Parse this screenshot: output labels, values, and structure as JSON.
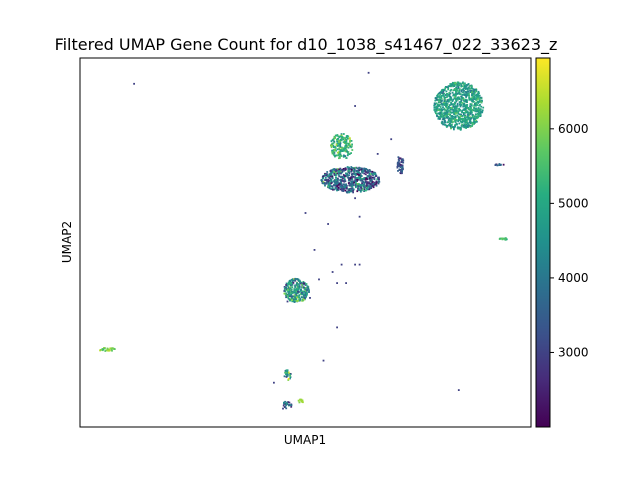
{
  "chart_data": {
    "type": "scatter",
    "title": "Filtered UMAP Gene Count for d10_1038_s41467_022_33623_z",
    "xlabel": "UMAP1",
    "ylabel": "UMAP2",
    "xticks_shown": false,
    "yticks_shown": false,
    "grid": false,
    "color_encoding": "gene count",
    "colormap": "viridis",
    "colorbar": {
      "min": 2000,
      "max": 6950,
      "ticks": [
        3000,
        4000,
        5000,
        6000
      ],
      "tick_labels": [
        "3000",
        "4000",
        "5000",
        "6000"
      ]
    },
    "clusters": [
      {
        "name": "top-right large",
        "cx": 0.84,
        "cy": 0.87,
        "rx": 0.055,
        "ry": 0.065,
        "n": 900,
        "mean_count": 4800,
        "sd": 450
      },
      {
        "name": "upper-middle diagonal",
        "cx": 0.6,
        "cy": 0.67,
        "rx": 0.065,
        "ry": 0.035,
        "n": 650,
        "mean_count": 3600,
        "sd": 900
      },
      {
        "name": "upper-middle left blob",
        "cx": 0.58,
        "cy": 0.76,
        "rx": 0.025,
        "ry": 0.035,
        "n": 180,
        "mean_count": 5300,
        "sd": 600
      },
      {
        "name": "small right of middle",
        "cx": 0.71,
        "cy": 0.71,
        "rx": 0.008,
        "ry": 0.025,
        "n": 60,
        "mean_count": 3300,
        "sd": 400
      },
      {
        "name": "central",
        "cx": 0.48,
        "cy": 0.37,
        "rx": 0.028,
        "ry": 0.032,
        "n": 280,
        "mean_count": 4700,
        "sd": 900
      },
      {
        "name": "far-left small",
        "cx": 0.06,
        "cy": 0.21,
        "rx": 0.018,
        "ry": 0.005,
        "n": 30,
        "mean_count": 6000,
        "sd": 300
      },
      {
        "name": "bottom small",
        "cx": 0.46,
        "cy": 0.14,
        "rx": 0.008,
        "ry": 0.015,
        "n": 30,
        "mean_count": 4800,
        "sd": 900
      },
      {
        "name": "bottom lower",
        "cx": 0.46,
        "cy": 0.06,
        "rx": 0.01,
        "ry": 0.01,
        "n": 25,
        "mean_count": 3800,
        "sd": 900
      },
      {
        "name": "bottom tiny",
        "cx": 0.49,
        "cy": 0.07,
        "rx": 0.006,
        "ry": 0.005,
        "n": 12,
        "mean_count": 6200,
        "sd": 200
      },
      {
        "name": "right small",
        "cx": 0.94,
        "cy": 0.51,
        "rx": 0.012,
        "ry": 0.003,
        "n": 15,
        "mean_count": 5500,
        "sd": 300
      },
      {
        "name": "right dots",
        "cx": 0.93,
        "cy": 0.71,
        "rx": 0.01,
        "ry": 0.003,
        "n": 10,
        "mean_count": 3500,
        "sd": 500
      }
    ],
    "scattered_points": [
      [
        0.12,
        0.93
      ],
      [
        0.61,
        0.87
      ],
      [
        0.64,
        0.96
      ],
      [
        0.55,
        0.55
      ],
      [
        0.52,
        0.48
      ],
      [
        0.58,
        0.44
      ],
      [
        0.61,
        0.44
      ],
      [
        0.56,
        0.42
      ],
      [
        0.59,
        0.39
      ],
      [
        0.53,
        0.4
      ],
      [
        0.57,
        0.27
      ],
      [
        0.51,
        0.35
      ],
      [
        0.54,
        0.18
      ],
      [
        0.84,
        0.1
      ],
      [
        0.61,
        0.62
      ],
      [
        0.66,
        0.74
      ],
      [
        0.43,
        0.12
      ],
      [
        0.45,
        0.05
      ],
      [
        0.69,
        0.78
      ],
      [
        0.57,
        0.39
      ],
      [
        0.5,
        0.58
      ],
      [
        0.62,
        0.57
      ],
      [
        0.62,
        0.44
      ],
      [
        0.46,
        0.34
      ]
    ]
  }
}
